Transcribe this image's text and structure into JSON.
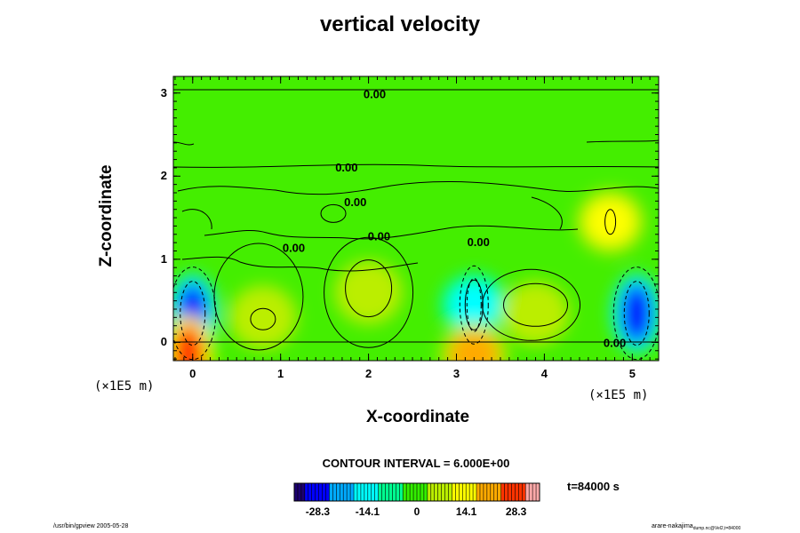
{
  "title": "vertical velocity",
  "chart_data": {
    "type": "heatmap",
    "title": "vertical velocity",
    "xlabel": "X-coordinate",
    "ylabel": "Z-coordinate",
    "x_ticks": [
      0,
      1,
      2,
      3,
      4,
      5
    ],
    "y_ticks": [
      0,
      1,
      2,
      3
    ],
    "xlim": [
      -0.22,
      5.3
    ],
    "ylim": [
      -0.22,
      3.2
    ],
    "x_unit": "(×1E5 m)",
    "y_unit": "(×1E5 m)",
    "contour_interval_text": "CONTOUR INTERVAL = 6.000E+00",
    "contour_labels": [
      {
        "text": "0.00",
        "x": 2.07,
        "z": 2.98
      },
      {
        "text": "0.00",
        "x": 1.75,
        "z": 2.1
      },
      {
        "text": "0.00",
        "x": 1.85,
        "z": 1.68
      },
      {
        "text": "0.00",
        "x": 1.15,
        "z": 1.13
      },
      {
        "text": "0.00",
        "x": 2.12,
        "z": 1.27
      },
      {
        "text": "0.00",
        "x": 3.25,
        "z": 1.2
      },
      {
        "text": "0.00",
        "x": 4.8,
        "z": -0.01
      }
    ],
    "features": [
      {
        "x": 0.0,
        "z": 0.35,
        "value": -28.3
      },
      {
        "x": 5.05,
        "z": 0.35,
        "value": -28.3
      },
      {
        "x": 3.2,
        "z": 0.45,
        "value": -14.1
      },
      {
        "x": 4.75,
        "z": 1.45,
        "value": 14.1
      },
      {
        "x": 2.0,
        "z": 0.6,
        "value": 10
      },
      {
        "x": 0.8,
        "z": 0.3,
        "value": 8
      },
      {
        "x": 3.9,
        "z": 0.35,
        "value": 10
      },
      {
        "x": -0.05,
        "z": -0.15,
        "value": 28.3
      },
      {
        "x": 3.2,
        "z": -0.15,
        "value": 20
      }
    ],
    "colorbar": {
      "tick_labels": [
        "-28.3",
        "-14.1",
        "0",
        "14.1",
        "28.3"
      ],
      "tick_values": [
        -28.3,
        -14.1,
        0,
        14.1,
        28.3
      ],
      "range": [
        -35,
        35
      ],
      "colors": [
        "#1c0070",
        "#0000ff",
        "#00aaff",
        "#00ffff",
        "#00ff90",
        "#33ee00",
        "#bbee00",
        "#ffff00",
        "#ffaa00",
        "#ff3300",
        "#ffaaaa"
      ]
    },
    "grid": false,
    "time_text": "t=84000 s"
  },
  "footer": {
    "left": "/usr/bin/gpview 2005-05-28",
    "right_main": "arare-nakajima",
    "right_sub": "dump.nc@Vel2,t=84000"
  }
}
